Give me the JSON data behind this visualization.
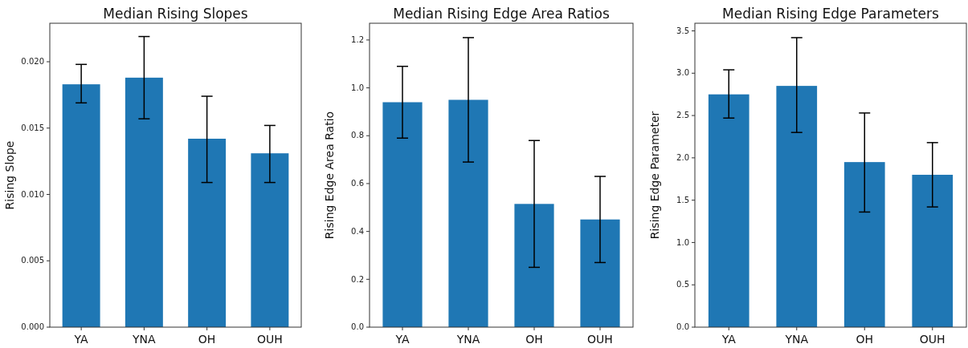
{
  "chart_data": [
    {
      "type": "bar",
      "title": "Median Rising Slopes",
      "ylabel": "Rising Slope",
      "categories": [
        "YA",
        "YNA",
        "OH",
        "OUH"
      ],
      "color": "#1f77b4",
      "values": [
        0.0183,
        0.0188,
        0.0142,
        0.0131
      ],
      "errors": [
        [
          0.0169,
          0.0198
        ],
        [
          0.0157,
          0.0219
        ],
        [
          0.0109,
          0.0174
        ],
        [
          0.0109,
          0.0152
        ]
      ],
      "ylim": [
        0,
        0.0229
      ],
      "yticks": [
        {
          "value": 0,
          "label": "0.000"
        },
        {
          "value": 0.005,
          "label": "0.005"
        },
        {
          "value": 0.01,
          "label": "0.010"
        },
        {
          "value": 0.015,
          "label": "0.015"
        },
        {
          "value": 0.02,
          "label": "0.020"
        }
      ],
      "grid": false
    },
    {
      "type": "bar",
      "title": "Median Rising Edge Area Ratios",
      "ylabel": "Rising Edge Area Ratio",
      "categories": [
        "YA",
        "YNA",
        "OH",
        "OUH"
      ],
      "color": "#1f77b4",
      "values": [
        0.94,
        0.95,
        0.515,
        0.45
      ],
      "errors": [
        [
          0.79,
          1.09
        ],
        [
          0.69,
          1.21
        ],
        [
          0.25,
          0.78
        ],
        [
          0.27,
          0.63
        ]
      ],
      "ylim": [
        0,
        1.27
      ],
      "yticks": [
        {
          "value": 0,
          "label": "0.0"
        },
        {
          "value": 0.2,
          "label": "0.2"
        },
        {
          "value": 0.4,
          "label": "0.4"
        },
        {
          "value": 0.6,
          "label": "0.6"
        },
        {
          "value": 0.8,
          "label": "0.8"
        },
        {
          "value": 1,
          "label": "1.0"
        },
        {
          "value": 1.2,
          "label": "1.2"
        }
      ],
      "grid": false
    },
    {
      "type": "bar",
      "title": "Median Rising Edge Parameters",
      "ylabel": "Rising Edge Parameter",
      "categories": [
        "YA",
        "YNA",
        "OH",
        "OUH"
      ],
      "color": "#1f77b4",
      "values": [
        2.75,
        2.85,
        1.95,
        1.8
      ],
      "errors": [
        [
          2.47,
          3.04
        ],
        [
          2.3,
          3.42
        ],
        [
          1.36,
          2.53
        ],
        [
          1.42,
          2.18
        ]
      ],
      "ylim": [
        0,
        3.59
      ],
      "yticks": [
        {
          "value": 0,
          "label": "0.0"
        },
        {
          "value": 0.5,
          "label": "0.5"
        },
        {
          "value": 1,
          "label": "1.0"
        },
        {
          "value": 1.5,
          "label": "1.5"
        },
        {
          "value": 2,
          "label": "2.0"
        },
        {
          "value": 2.5,
          "label": "2.5"
        },
        {
          "value": 3,
          "label": "3.0"
        },
        {
          "value": 3.5,
          "label": "3.5"
        }
      ],
      "grid": false
    }
  ]
}
